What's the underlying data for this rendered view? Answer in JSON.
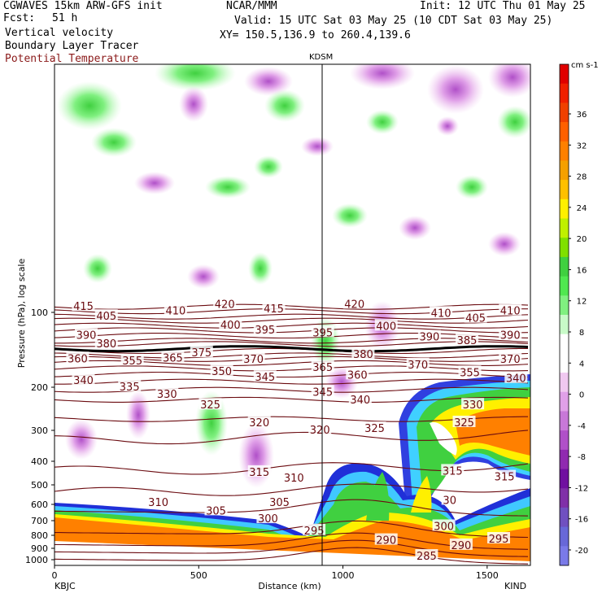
{
  "header": {
    "model": "CGWAVES 15km ARW-GFS init",
    "fcst_label": "Fcst:",
    "fcst_value": "51 h",
    "center": "NCAR/MMM",
    "init": "Init: 12 UTC Thu 01 May 25",
    "valid": "Valid: 15 UTC Sat 03 May 25 (10 CDT Sat 03 May 25)",
    "xy": "XY= 150.5,136.9 to 260.4,139.6",
    "field1": "Vertical velocity",
    "field2": "Boundary Layer Tracer",
    "field3": "Potential Temperature",
    "field3_color": "#8b1a1a",
    "station_mid": "KDSM"
  },
  "axes": {
    "ylabel": "Pressure (hPa), log scale",
    "xlabel": "Distance (km)",
    "left_station": "KBJC",
    "right_station": "KIND"
  },
  "chart_data": {
    "type": "heatmap",
    "title": "",
    "xlabel": "Distance (km)",
    "ylabel": "Pressure (hPa), log scale",
    "xlim": [
      0,
      1650
    ],
    "ylim": [
      1000,
      10
    ],
    "y_scale": "log",
    "x_ticks": [
      "0",
      "500",
      "1000",
      "1500"
    ],
    "y_ticks": [
      "100",
      "200",
      "300",
      "400",
      "500",
      "600",
      "700",
      "800",
      "900",
      "1000"
    ],
    "station_marker_x_km": 930,
    "colorbar": {
      "unit": "cm s-1",
      "ticks": [
        "36",
        "32",
        "28",
        "24",
        "20",
        "16",
        "12",
        "8",
        "4",
        "0",
        "-4",
        "-8",
        "-12",
        "-16",
        "-20"
      ],
      "colors": [
        "#e00000",
        "#f02000",
        "#f04000",
        "#ff6000",
        "#ff8000",
        "#f5a000",
        "#ffc000",
        "#fff000",
        "#c0f000",
        "#80e000",
        "#40d040",
        "#50e850",
        "#80f080",
        "#c8fac8",
        "#ffffff",
        "#ffffff",
        "#f0c8f0",
        "#e0a0e8",
        "#c878d8",
        "#b050c8",
        "#902ab0",
        "#7010a0",
        "#8030a8",
        "#7050c0",
        "#6868d8",
        "#7a7ae8"
      ]
    },
    "theta_contours": [
      {
        "label": "285",
        "p": 995
      },
      {
        "label": "290",
        "p": 930
      },
      {
        "label": "295",
        "p": 870
      },
      {
        "label": "300",
        "p": 780
      },
      {
        "label": "305",
        "p": 640
      },
      {
        "label": "310",
        "p": 540
      },
      {
        "label": "315",
        "p": 440
      },
      {
        "label": "320",
        "p": 330
      },
      {
        "label": "325",
        "p": 270
      },
      {
        "label": "330",
        "p": 225
      },
      {
        "label": "335",
        "p": 205
      },
      {
        "label": "340",
        "p": 190
      },
      {
        "label": "345",
        "p": 178
      },
      {
        "label": "350",
        "p": 168
      },
      {
        "label": "355",
        "p": 160
      },
      {
        "label": "360",
        "p": 154
      },
      {
        "label": "365",
        "p": 149
      },
      {
        "label": "370",
        "p": 143
      },
      {
        "label": "375",
        "p": 140
      },
      {
        "label": "380",
        "p": 134
      },
      {
        "label": "385",
        "p": 130
      },
      {
        "label": "390",
        "p": 124
      },
      {
        "label": "395",
        "p": 118
      },
      {
        "label": "400",
        "p": 113
      },
      {
        "label": "405",
        "p": 108
      },
      {
        "label": "410",
        "p": 104
      },
      {
        "label": "415",
        "p": 99
      },
      {
        "label": "420",
        "p": 95
      }
    ],
    "contour_labels": [
      {
        "text": "415",
        "x": 100,
        "p": 95
      },
      {
        "text": "405",
        "x": 180,
        "p": 104
      },
      {
        "text": "410",
        "x": 420,
        "p": 99
      },
      {
        "text": "420",
        "x": 590,
        "p": 93
      },
      {
        "text": "415",
        "x": 760,
        "p": 97
      },
      {
        "text": "420",
        "x": 1040,
        "p": 93
      },
      {
        "text": "410",
        "x": 1340,
        "p": 101
      },
      {
        "text": "405",
        "x": 1460,
        "p": 106
      },
      {
        "text": "410",
        "x": 1580,
        "p": 99
      },
      {
        "text": "390",
        "x": 110,
        "p": 124
      },
      {
        "text": "400",
        "x": 610,
        "p": 113
      },
      {
        "text": "395",
        "x": 730,
        "p": 118
      },
      {
        "text": "395",
        "x": 930,
        "p": 121
      },
      {
        "text": "400",
        "x": 1150,
        "p": 114
      },
      {
        "text": "390",
        "x": 1300,
        "p": 126
      },
      {
        "text": "385",
        "x": 1430,
        "p": 130
      },
      {
        "text": "390",
        "x": 1580,
        "p": 124
      },
      {
        "text": "380",
        "x": 180,
        "p": 134
      },
      {
        "text": "360",
        "x": 80,
        "p": 154
      },
      {
        "text": "355",
        "x": 270,
        "p": 157
      },
      {
        "text": "365",
        "x": 410,
        "p": 153
      },
      {
        "text": "375",
        "x": 510,
        "p": 146
      },
      {
        "text": "370",
        "x": 690,
        "p": 155
      },
      {
        "text": "380",
        "x": 1070,
        "p": 148
      },
      {
        "text": "370",
        "x": 1260,
        "p": 163
      },
      {
        "text": "370",
        "x": 1580,
        "p": 155
      },
      {
        "text": "365",
        "x": 930,
        "p": 167
      },
      {
        "text": "350",
        "x": 580,
        "p": 173
      },
      {
        "text": "345",
        "x": 730,
        "p": 183
      },
      {
        "text": "360",
        "x": 1050,
        "p": 179
      },
      {
        "text": "355",
        "x": 1440,
        "p": 175
      },
      {
        "text": "340",
        "x": 1600,
        "p": 185
      },
      {
        "text": "340",
        "x": 100,
        "p": 188
      },
      {
        "text": "335",
        "x": 260,
        "p": 200
      },
      {
        "text": "330",
        "x": 390,
        "p": 214
      },
      {
        "text": "345",
        "x": 930,
        "p": 210
      },
      {
        "text": "340",
        "x": 1060,
        "p": 226
      },
      {
        "text": "325",
        "x": 540,
        "p": 237
      },
      {
        "text": "320",
        "x": 710,
        "p": 280
      },
      {
        "text": "320",
        "x": 920,
        "p": 300
      },
      {
        "text": "325",
        "x": 1110,
        "p": 296
      },
      {
        "text": "325",
        "x": 1420,
        "p": 280
      },
      {
        "text": "330",
        "x": 1450,
        "p": 237
      },
      {
        "text": "315",
        "x": 710,
        "p": 445
      },
      {
        "text": "310",
        "x": 830,
        "p": 470
      },
      {
        "text": "315",
        "x": 1380,
        "p": 440
      },
      {
        "text": "315",
        "x": 1560,
        "p": 465
      },
      {
        "text": "310",
        "x": 360,
        "p": 590
      },
      {
        "text": "305",
        "x": 560,
        "p": 640
      },
      {
        "text": "305",
        "x": 780,
        "p": 590
      },
      {
        "text": "300",
        "x": 740,
        "p": 690
      },
      {
        "text": "300",
        "x": 1350,
        "p": 740
      },
      {
        "text": "295",
        "x": 900,
        "p": 770
      },
      {
        "text": "290",
        "x": 1150,
        "p": 840
      },
      {
        "text": "295",
        "x": 1540,
        "p": 830
      },
      {
        "text": "290",
        "x": 1410,
        "p": 880
      },
      {
        "text": "285",
        "x": 1290,
        "p": 970
      },
      {
        "text": "30",
        "x": 1370,
        "p": 580
      }
    ]
  }
}
